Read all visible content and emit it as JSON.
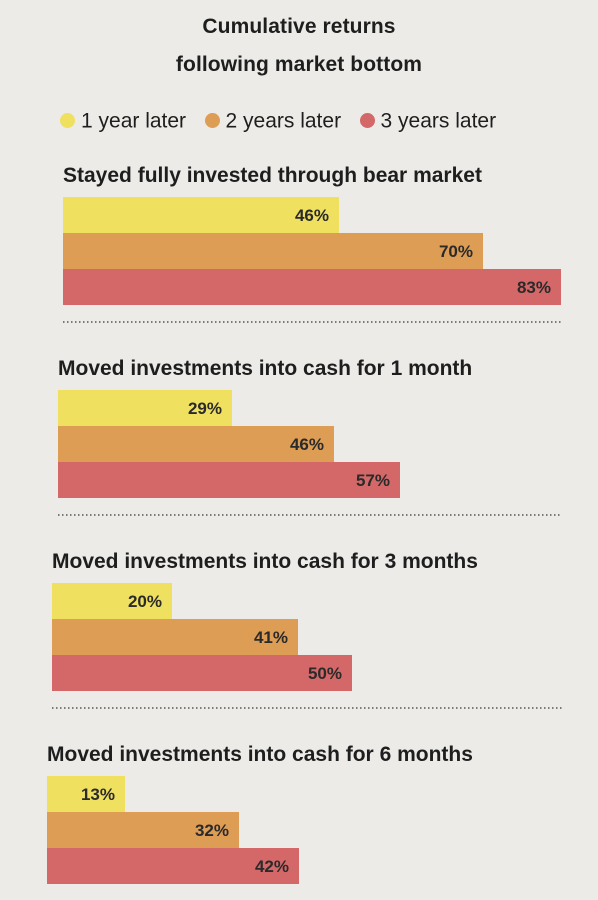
{
  "chart_data": {
    "type": "bar",
    "orientation": "horizontal",
    "title_lines": [
      "Cumulative returns",
      "following market bottom"
    ],
    "value_suffix": "%",
    "xlim": [
      0,
      83
    ],
    "series": [
      {
        "name": "1 year later",
        "color": "#efe060"
      },
      {
        "name": "2 years later",
        "color": "#dd9d55"
      },
      {
        "name": "3 years later",
        "color": "#d46868"
      }
    ],
    "panels": [
      {
        "title": "Stayed fully invested through bear market",
        "values": [
          46,
          70,
          83
        ],
        "labels": [
          "46%",
          "70%",
          "83%"
        ]
      },
      {
        "title": "Moved investments into cash for 1 month",
        "values": [
          29,
          46,
          57
        ],
        "labels": [
          "29%",
          "46%",
          "57%"
        ]
      },
      {
        "title": "Moved investments into cash for 3 months",
        "values": [
          20,
          41,
          50
        ],
        "labels": [
          "20%",
          "41%",
          "50%"
        ]
      },
      {
        "title": "Moved investments into cash for 6 months",
        "values": [
          13,
          32,
          42
        ],
        "labels": [
          "13%",
          "32%",
          "42%"
        ]
      }
    ]
  }
}
